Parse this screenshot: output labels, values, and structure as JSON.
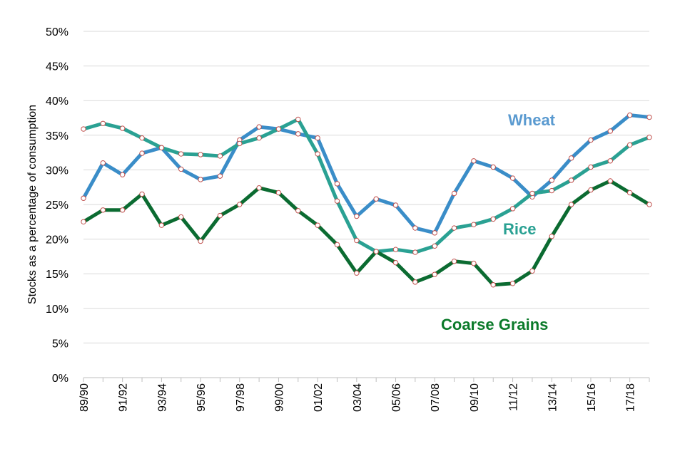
{
  "chart_data": {
    "type": "line",
    "ylabel": "Stocks as a percentage of consumption",
    "xlabel": "",
    "title": "",
    "ylim": [
      0,
      50
    ],
    "y_ticks": [
      "0%",
      "5%",
      "10%",
      "15%",
      "20%",
      "25%",
      "30%",
      "35%",
      "40%",
      "45%",
      "50%"
    ],
    "y_tick_values": [
      0,
      5,
      10,
      15,
      20,
      25,
      30,
      35,
      40,
      45,
      50
    ],
    "grid": true,
    "legend": "inline labels",
    "categories": [
      "89/90",
      "90/91",
      "91/92",
      "92/93",
      "93/94",
      "94/95",
      "95/96",
      "96/97",
      "97/98",
      "98/99",
      "99/00",
      "00/01",
      "01/02",
      "02/03",
      "03/04",
      "04/05",
      "05/06",
      "06/07",
      "07/08",
      "08/09",
      "09/10",
      "10/11",
      "11/12",
      "12/13",
      "13/14",
      "14/15",
      "15/16",
      "16/17",
      "17/18",
      "18/19"
    ],
    "x_tick_labels": [
      "89/90",
      "91/92",
      "93/94",
      "95/96",
      "97/98",
      "99/00",
      "01/02",
      "03/04",
      "05/06",
      "07/08",
      "09/10",
      "11/12",
      "13/14",
      "15/16",
      "17/18"
    ],
    "series": [
      {
        "name": "Wheat",
        "color": "#3A8DC8",
        "values": [
          25.9,
          31.0,
          29.3,
          32.4,
          33.2,
          30.1,
          28.6,
          29.1,
          34.3,
          36.2,
          35.9,
          35.2,
          34.6,
          28.0,
          23.3,
          25.8,
          24.9,
          21.6,
          20.9,
          26.6,
          31.3,
          30.4,
          28.8,
          26.1,
          28.5,
          31.7,
          34.3,
          35.6,
          37.9,
          37.6
        ]
      },
      {
        "name": "Rice",
        "color": "#2AA193",
        "values": [
          35.9,
          36.7,
          36.0,
          34.6,
          33.2,
          32.3,
          32.2,
          32.0,
          33.8,
          34.6,
          35.9,
          37.3,
          32.3,
          25.5,
          19.8,
          18.2,
          18.5,
          18.1,
          19.0,
          21.6,
          22.1,
          22.9,
          24.4,
          26.6,
          27.0,
          28.5,
          30.4,
          31.3,
          33.6,
          34.7
        ]
      },
      {
        "name": "Coarse Grains",
        "color": "#0B6B31",
        "values": [
          22.5,
          24.2,
          24.2,
          26.5,
          22.0,
          23.2,
          19.7,
          23.4,
          25.0,
          27.4,
          26.7,
          24.1,
          22.0,
          19.2,
          15.1,
          18.2,
          16.6,
          13.8,
          14.9,
          16.8,
          16.5,
          13.4,
          13.6,
          15.4,
          20.4,
          25.0,
          27.1,
          28.4,
          26.7,
          25.0
        ]
      }
    ],
    "labels": {
      "wheat": "Wheat",
      "rice": "Rice",
      "coarse": "Coarse Grains"
    },
    "label_colors": {
      "wheat": "#5A9AD0",
      "rice": "#2AA193",
      "coarse": "#0B7A2A"
    }
  }
}
